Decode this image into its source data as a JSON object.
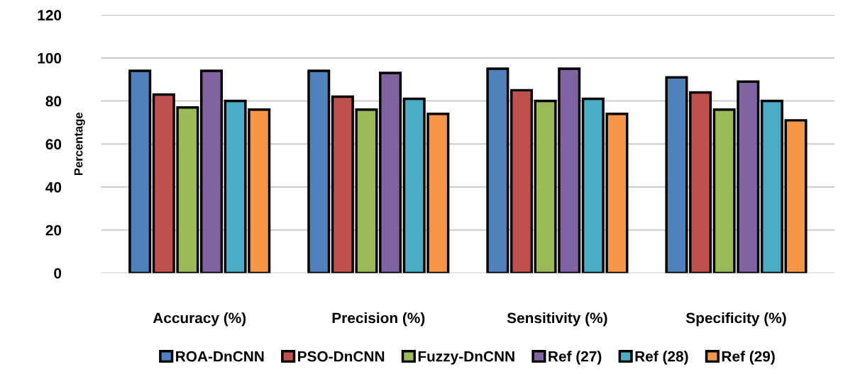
{
  "chart_data": {
    "type": "bar",
    "ylabel": "Percentage",
    "categories": [
      "Accuracy (%)",
      "Precision (%)",
      "Sensitivity (%)",
      "Specificity (%)"
    ],
    "series": [
      {
        "name": "ROA-DnCNN",
        "color": "#4f81bd",
        "values": [
          94,
          94,
          95,
          91
        ]
      },
      {
        "name": "PSO-DnCNN",
        "color": "#c0504d",
        "values": [
          83,
          82,
          85,
          84
        ]
      },
      {
        "name": "Fuzzy-DnCNN",
        "color": "#9bbb59",
        "values": [
          77,
          76,
          80,
          76
        ]
      },
      {
        "name": "Ref (27)",
        "color": "#8064a2",
        "values": [
          94,
          93,
          95,
          89
        ]
      },
      {
        "name": "Ref (28)",
        "color": "#4bacc6",
        "values": [
          80,
          81,
          81,
          80
        ]
      },
      {
        "name": "Ref (29)",
        "color": "#f79646",
        "values": [
          76,
          74,
          74,
          71
        ]
      }
    ],
    "ylim": [
      0,
      120
    ],
    "yticks": [
      0,
      20,
      40,
      60,
      80,
      100,
      120
    ],
    "grid": "y",
    "legend": "bottom"
  }
}
